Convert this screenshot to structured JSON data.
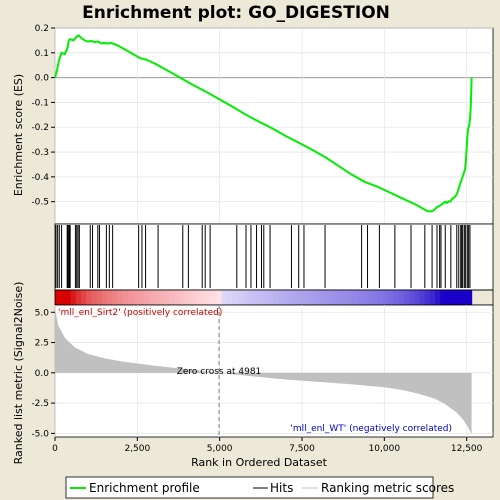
{
  "chart_data": {
    "type": "line",
    "title": "Enrichment plot: GO_DIGESTION",
    "xlabel": "Rank in Ordered Dataset",
    "top_ylabel": "Enrichment score (ES)",
    "bottom_ylabel": "Ranked list metric (Signal2Noise)",
    "xlim": [
      0,
      13300
    ],
    "top_ylim": [
      -0.59,
      0.2
    ],
    "bottom_ylim": [
      -5.3,
      5.6
    ],
    "x_ticks": [
      0,
      2500,
      5000,
      7500,
      10000,
      12500
    ],
    "x_tick_labels": [
      "0",
      "2,500",
      "5,000",
      "7,500",
      "10,000",
      "12,500"
    ],
    "top_y_ticks": [
      0.2,
      0.1,
      0.0,
      -0.1,
      -0.2,
      -0.3,
      -0.4,
      -0.5
    ],
    "top_y_tick_labels": [
      "0.2",
      "0.1",
      "0.0",
      "-0.1",
      "-0.2",
      "-0.3",
      "-0.4",
      "-0.5"
    ],
    "bottom_y_ticks": [
      5.0,
      2.5,
      0.0,
      -2.5,
      -5.0
    ],
    "bottom_y_tick_labels": [
      "5.0",
      "2.5",
      "0.0",
      "-2.5",
      "-5.0"
    ],
    "series": [
      {
        "name": "Enrichment profile",
        "color": "#00ee00",
        "x": [
          0,
          60,
          120,
          200,
          300,
          380,
          420,
          460,
          560,
          660,
          720,
          800,
          900,
          1000,
          1100,
          1200,
          1300,
          1400,
          1500,
          1600,
          1700,
          1900,
          2100,
          2300,
          2500,
          2600,
          2750,
          2900,
          3100,
          3400,
          3800,
          4200,
          4600,
          5000,
          5400,
          5800,
          6200,
          6600,
          7000,
          7400,
          7800,
          8200,
          8600,
          9000,
          9400,
          9800,
          10200,
          10600,
          11000,
          11200,
          11300,
          11400,
          11500,
          11550,
          11600,
          11700,
          11750,
          11800,
          11850,
          11900,
          11950,
          12000,
          12050,
          12100,
          12150,
          12200,
          12250,
          12300,
          12350,
          12400,
          12450,
          12480,
          12500,
          12520,
          12540,
          12560,
          12580,
          12600,
          12620,
          12640,
          12650
        ],
        "y": [
          0.0,
          0.03,
          0.07,
          0.1,
          0.095,
          0.12,
          0.15,
          0.155,
          0.15,
          0.165,
          0.17,
          0.16,
          0.15,
          0.145,
          0.148,
          0.143,
          0.146,
          0.138,
          0.14,
          0.137,
          0.14,
          0.13,
          0.115,
          0.1,
          0.085,
          0.078,
          0.073,
          0.065,
          0.052,
          0.03,
          0.0,
          -0.03,
          -0.058,
          -0.088,
          -0.118,
          -0.15,
          -0.178,
          -0.205,
          -0.235,
          -0.262,
          -0.29,
          -0.32,
          -0.355,
          -0.39,
          -0.42,
          -0.44,
          -0.465,
          -0.49,
          -0.515,
          -0.53,
          -0.537,
          -0.54,
          -0.535,
          -0.528,
          -0.522,
          -0.515,
          -0.51,
          -0.505,
          -0.5,
          -0.505,
          -0.498,
          -0.5,
          -0.49,
          -0.485,
          -0.48,
          -0.47,
          -0.45,
          -0.43,
          -0.41,
          -0.39,
          -0.37,
          -0.33,
          -0.28,
          -0.24,
          -0.21,
          -0.2,
          -0.19,
          -0.17,
          -0.13,
          -0.05,
          0.0
        ]
      }
    ],
    "hits": [
      30,
      80,
      130,
      200,
      370,
      390,
      420,
      440,
      460,
      620,
      660,
      700,
      740,
      1070,
      1140,
      1300,
      1350,
      1560,
      1650,
      1750,
      2540,
      2640,
      2750,
      3130,
      3880,
      4050,
      4470,
      4560,
      4710,
      5520,
      5800,
      5950,
      6120,
      6270,
      6340,
      6530,
      7180,
      7400,
      7560,
      8200,
      9310,
      9490,
      9850,
      10320,
      10810,
      11230,
      11450,
      11600,
      11680,
      11720,
      11850,
      12020,
      12200,
      12260,
      12320,
      12350,
      12380,
      12430,
      12470,
      12520,
      12560,
      12600
    ],
    "metric_profile": {
      "x": [
        0,
        100,
        300,
        600,
        1000,
        1500,
        2000,
        3000,
        4000,
        4981,
        6000,
        7000,
        8000,
        9000,
        10000,
        10500,
        11000,
        11500,
        11800,
        12000,
        12200,
        12400,
        12500,
        12600,
        12650
      ],
      "y": [
        5.3,
        3.9,
        2.9,
        2.1,
        1.55,
        1.2,
        0.95,
        0.6,
        0.3,
        0.0,
        -0.3,
        -0.55,
        -0.75,
        -0.95,
        -1.2,
        -1.4,
        -1.7,
        -2.1,
        -2.5,
        -2.9,
        -3.3,
        -3.9,
        -4.3,
        -4.8,
        -5.1
      ]
    },
    "zero_cross": 4981,
    "annotations": {
      "positive": "'mll_enl_Sirt2' (positively correlated)",
      "negative": "'mll_enl_WT' (negatively correlated)",
      "zero_cross": "Zero cross at 4981"
    },
    "legend": {
      "placement": "bottom",
      "entries": [
        "Enrichment profile",
        "Hits",
        "Ranking metric scores"
      ]
    },
    "colors": {
      "background": "#ece9d8",
      "plot_background": "#ffffff",
      "profile": "#00ee00",
      "hits": "#000000",
      "metric_fill": "#c0c0c0",
      "positive_label": "#cc0000",
      "negative_label": "#0000cc",
      "heat_red": "#dd0000",
      "heat_blue": "#1a00cc"
    }
  }
}
